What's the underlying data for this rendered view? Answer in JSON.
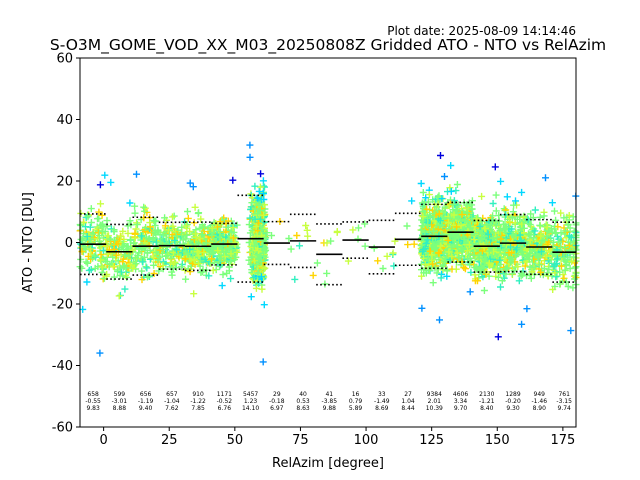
{
  "chart_data": {
    "type": "scatter",
    "plot_date": "Plot date: 2025-08-09 14:14:46",
    "title": "S-O3M_GOME_VOD_XX_M03_20250808Z Gridded ATO - NTO vs RelAzim",
    "xlabel": "RelAzim [degree]",
    "ylabel": "ATO - NTO [DU]",
    "xlim": [
      -9,
      180
    ],
    "ylim": [
      -60,
      60
    ],
    "xticks": [
      0,
      25,
      50,
      75,
      100,
      125,
      150,
      175
    ],
    "yticks": [
      -60,
      -40,
      -20,
      0,
      20,
      40,
      60
    ],
    "grid": false,
    "colors": [
      "#0000dd",
      "#0090ff",
      "#00d8ff",
      "#30f0c0",
      "#7cff7c",
      "#c8ff40",
      "#ffd400"
    ],
    "bins": [
      {
        "x0": -9,
        "x1": 1,
        "n": "658",
        "mean": "-0.55",
        "std": "9.83"
      },
      {
        "x0": 1,
        "x1": 11,
        "n": "599",
        "mean": "-3.01",
        "std": "8.88"
      },
      {
        "x0": 11,
        "x1": 21,
        "n": "656",
        "mean": "-1.19",
        "std": "9.40"
      },
      {
        "x0": 21,
        "x1": 31,
        "n": "657",
        "mean": "-1.04",
        "std": "7.62"
      },
      {
        "x0": 31,
        "x1": 41,
        "n": "910",
        "mean": "-1.22",
        "std": "7.85"
      },
      {
        "x0": 41,
        "x1": 51,
        "n": "1171",
        "mean": "-0.52",
        "std": "6.76"
      },
      {
        "x0": 51,
        "x1": 61,
        "n": "5457",
        "mean": "1.23",
        "std": "14.10"
      },
      {
        "x0": 61,
        "x1": 71,
        "n": "29",
        "mean": "-0.18",
        "std": "6.97"
      },
      {
        "x0": 71,
        "x1": 81,
        "n": "40",
        "mean": "0.53",
        "std": "8.63"
      },
      {
        "x0": 81,
        "x1": 91,
        "n": "41",
        "mean": "-3.85",
        "std": "9.88"
      },
      {
        "x0": 91,
        "x1": 101,
        "n": "16",
        "mean": "0.79",
        "std": "5.89"
      },
      {
        "x0": 101,
        "x1": 111,
        "n": "33",
        "mean": "-1.49",
        "std": "8.69"
      },
      {
        "x0": 111,
        "x1": 121,
        "n": "27",
        "mean": "1.04",
        "std": "8.44"
      },
      {
        "x0": 121,
        "x1": 131,
        "n": "9384",
        "mean": "2.01",
        "std": "10.39"
      },
      {
        "x0": 131,
        "x1": 141,
        "n": "4606",
        "mean": "3.34",
        "std": "9.70"
      },
      {
        "x0": 141,
        "x1": 151,
        "n": "2130",
        "mean": "-1.21",
        "std": "8.40"
      },
      {
        "x0": 151,
        "x1": 161,
        "n": "1289",
        "mean": "-0.20",
        "std": "9.30"
      },
      {
        "x0": 161,
        "x1": 171,
        "n": "949",
        "mean": "-1.46",
        "std": "8.90"
      },
      {
        "x0": 171,
        "x1": 181,
        "n": "761",
        "mean": "-3.15",
        "std": "9.74"
      }
    ]
  }
}
